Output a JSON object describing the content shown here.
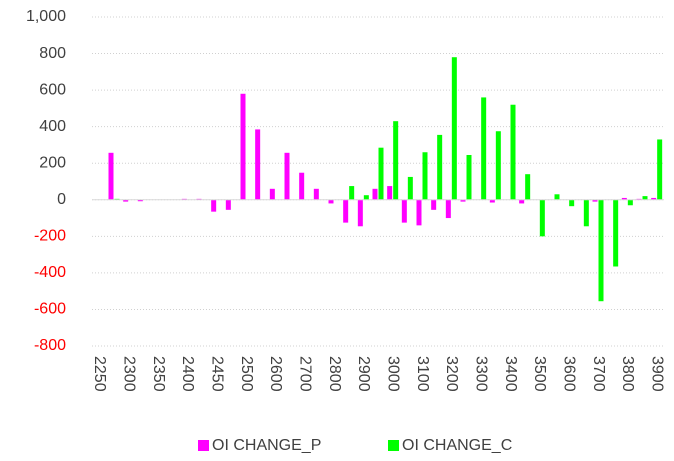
{
  "chart_data": {
    "type": "bar",
    "categories": [
      "2250",
      null,
      "2300",
      null,
      "2350",
      null,
      "2400",
      null,
      "2450",
      null,
      "2500",
      null,
      "2600",
      null,
      "2700",
      null,
      "2800",
      null,
      "2900",
      null,
      "3000",
      null,
      "3100",
      null,
      "3200",
      null,
      "3300",
      null,
      "3400",
      null,
      "3500",
      null,
      "3600",
      null,
      "3700",
      null,
      "3800",
      null,
      "3900"
    ],
    "series": [
      {
        "name": "OI CHANGE_P",
        "color": "#ff00ff",
        "values": [
          0,
          257,
          -10,
          -8,
          0,
          0,
          5,
          5,
          -65,
          -55,
          580,
          385,
          60,
          257,
          148,
          60,
          -20,
          -125,
          -145,
          60,
          75,
          -125,
          -140,
          -55,
          -100,
          -10,
          0,
          -15,
          0,
          -20,
          0,
          0,
          0,
          0,
          -10,
          0,
          10,
          5,
          10
        ]
      },
      {
        "name": "OI CHANGE_C",
        "color": "#00ff00",
        "values": [
          0,
          5,
          0,
          0,
          0,
          0,
          0,
          0,
          0,
          0,
          0,
          0,
          0,
          0,
          0,
          0,
          0,
          75,
          25,
          285,
          430,
          125,
          260,
          355,
          780,
          245,
          560,
          375,
          520,
          140,
          -200,
          30,
          -35,
          -145,
          -555,
          -365,
          -30,
          20,
          330
        ]
      }
    ],
    "ylim": [
      -800,
      1000
    ],
    "yticks": [
      -800,
      -600,
      -400,
      -200,
      0,
      200,
      400,
      600,
      800,
      {
        "value": 1000,
        "label": "1,000"
      }
    ],
    "negative_tick_color": "#ff0000",
    "grid": true,
    "legend": "bottom"
  }
}
